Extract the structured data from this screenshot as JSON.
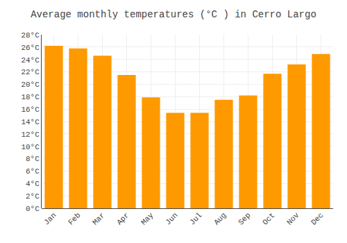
{
  "chart_data": {
    "type": "bar",
    "title": "Average monthly temperatures (°C ) in Cerro Largo",
    "categories": [
      "Jan",
      "Feb",
      "Mar",
      "Apr",
      "May",
      "Jun",
      "Jul",
      "Aug",
      "Sep",
      "Oct",
      "Nov",
      "Dec"
    ],
    "values": [
      26.2,
      25.8,
      24.6,
      21.5,
      17.9,
      15.4,
      15.4,
      17.5,
      18.2,
      21.7,
      23.2,
      24.9
    ],
    "color": "#FF9900",
    "ylim": [
      0,
      28
    ],
    "yticks": [
      {
        "value": 0,
        "label": "0°C"
      },
      {
        "value": 2,
        "label": "2°C"
      },
      {
        "value": 4,
        "label": "4°C"
      },
      {
        "value": 6,
        "label": "6°C"
      },
      {
        "value": 8,
        "label": "8°C"
      },
      {
        "value": 10,
        "label": "10°C"
      },
      {
        "value": 12,
        "label": "12°C"
      },
      {
        "value": 14,
        "label": "14°C"
      },
      {
        "value": 16,
        "label": "16°C"
      },
      {
        "value": 18,
        "label": "18°C"
      },
      {
        "value": 20,
        "label": "20°C"
      },
      {
        "value": 22,
        "label": "22°C"
      },
      {
        "value": 24,
        "label": "24°C"
      },
      {
        "value": 26,
        "label": "26°C"
      },
      {
        "value": 28,
        "label": "28°C"
      }
    ],
    "grid": true
  }
}
